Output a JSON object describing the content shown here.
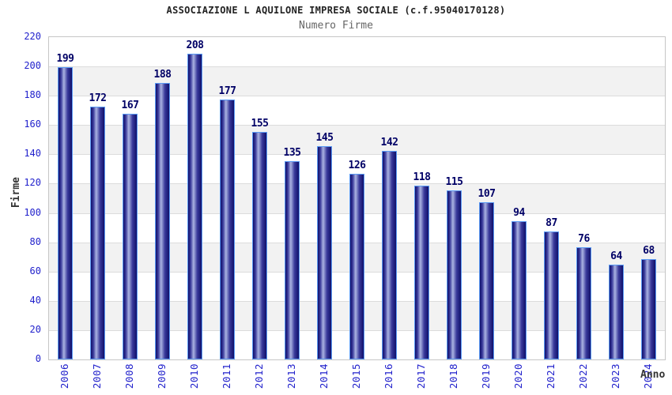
{
  "chart_data": {
    "type": "bar",
    "title": "ASSOCIAZIONE L AQUILONE IMPRESA SOCIALE (c.f.95040170128)",
    "subtitle": "Numero Firme",
    "xlabel": "Anno",
    "ylabel": "Firme",
    "categories": [
      "2006",
      "2007",
      "2008",
      "2009",
      "2010",
      "2011",
      "2012",
      "2013",
      "2014",
      "2015",
      "2016",
      "2017",
      "2018",
      "2019",
      "2020",
      "2021",
      "2022",
      "2023",
      "2024"
    ],
    "values": [
      199,
      172,
      167,
      188,
      208,
      177,
      155,
      135,
      145,
      126,
      142,
      118,
      115,
      107,
      94,
      87,
      76,
      64,
      68
    ],
    "ylim": [
      0,
      220
    ],
    "ytick_step": 20,
    "grid": true,
    "legend": "none",
    "band_colors": [
      "#ffffff",
      "#f2f2f2"
    ],
    "colors": {
      "title": "#222222",
      "subtitle": "#666666",
      "tick_label": "#2222cc",
      "value_label": "#000066",
      "axis_title": "#333333",
      "grid_line": "#dcdcdc",
      "plot_border": "#c6c6c6",
      "bar_outline": "#5b9bf5",
      "bar_edge": "#10106a",
      "bar_mid": "#39399a",
      "bar_highlight": "#aab3e2"
    }
  }
}
